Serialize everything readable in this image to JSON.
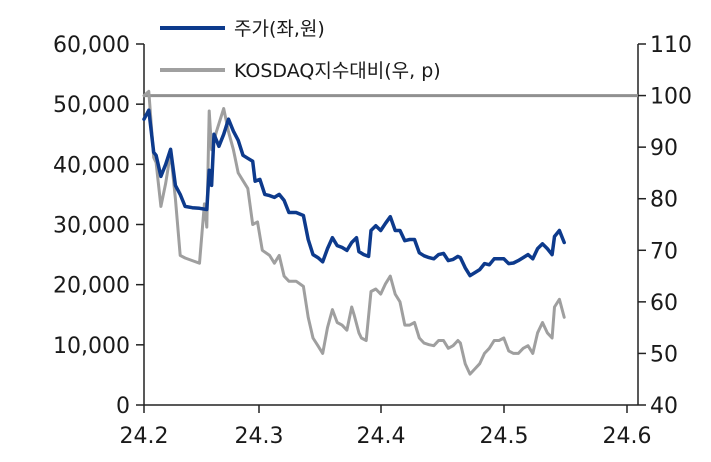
{
  "chart_data": {
    "type": "line",
    "title": "",
    "xlabel": "",
    "ylabel": "",
    "x_ticks": [
      "24.2",
      "24.3",
      "24.4",
      "24.5",
      "24.6"
    ],
    "y_left": {
      "min": 0,
      "max": 60000,
      "ticks": [
        "0",
        "10,000",
        "20,000",
        "30,000",
        "40,000",
        "50,000",
        "60,000"
      ]
    },
    "y_right": {
      "min": 40,
      "max": 110,
      "ticks": [
        "40",
        "50",
        "60",
        "70",
        "80",
        "90",
        "100",
        "110"
      ]
    },
    "reference_line": {
      "axis": "right",
      "value": 100,
      "color": "#909090"
    },
    "grid": false,
    "legend_position": "top-left",
    "series": [
      {
        "name": "주가(좌,원)",
        "axis": "left",
        "color": "#0d3a8c",
        "points": [
          [
            0.0,
            47500
          ],
          [
            0.04,
            49000
          ],
          [
            0.08,
            42000
          ],
          [
            0.1,
            41500
          ],
          [
            0.14,
            38000
          ],
          [
            0.18,
            40000
          ],
          [
            0.22,
            42500
          ],
          [
            0.26,
            36500
          ],
          [
            0.3,
            35000
          ],
          [
            0.34,
            33000
          ],
          [
            0.4,
            32800
          ],
          [
            0.46,
            32700
          ],
          [
            0.52,
            32500
          ],
          [
            0.54,
            39000
          ],
          [
            0.56,
            36500
          ],
          [
            0.58,
            45000
          ],
          [
            0.62,
            43000
          ],
          [
            0.66,
            45000
          ],
          [
            0.7,
            47500
          ],
          [
            0.74,
            45500
          ],
          [
            0.78,
            44000
          ],
          [
            0.82,
            41500
          ],
          [
            0.86,
            41000
          ],
          [
            0.9,
            40500
          ],
          [
            0.92,
            37200
          ],
          [
            0.96,
            37500
          ],
          [
            1.0,
            35000
          ],
          [
            1.04,
            34800
          ],
          [
            1.08,
            34500
          ],
          [
            1.12,
            35000
          ],
          [
            1.16,
            34000
          ],
          [
            1.2,
            32000
          ],
          [
            1.26,
            32000
          ],
          [
            1.32,
            31500
          ],
          [
            1.36,
            27500
          ],
          [
            1.4,
            25000
          ],
          [
            1.44,
            24500
          ],
          [
            1.48,
            23800
          ],
          [
            1.52,
            26000
          ],
          [
            1.56,
            27800
          ],
          [
            1.6,
            26500
          ],
          [
            1.64,
            26200
          ],
          [
            1.68,
            25700
          ],
          [
            1.72,
            27000
          ],
          [
            1.76,
            27800
          ],
          [
            1.78,
            25500
          ],
          [
            1.82,
            25000
          ],
          [
            1.86,
            24700
          ],
          [
            1.88,
            29000
          ],
          [
            1.92,
            29800
          ],
          [
            1.96,
            29000
          ],
          [
            2.0,
            30200
          ],
          [
            2.04,
            31300
          ],
          [
            2.08,
            29000
          ],
          [
            2.12,
            29000
          ],
          [
            2.16,
            27300
          ],
          [
            2.2,
            27500
          ],
          [
            2.24,
            27500
          ],
          [
            2.28,
            25300
          ],
          [
            2.32,
            24800
          ],
          [
            2.36,
            24500
          ],
          [
            2.4,
            24300
          ],
          [
            2.44,
            25000
          ],
          [
            2.48,
            25200
          ],
          [
            2.52,
            24000
          ],
          [
            2.56,
            24200
          ],
          [
            2.6,
            24700
          ],
          [
            2.62,
            24500
          ],
          [
            2.66,
            22800
          ],
          [
            2.7,
            21500
          ],
          [
            2.74,
            22000
          ],
          [
            2.78,
            22500
          ],
          [
            2.82,
            23500
          ],
          [
            2.86,
            23300
          ],
          [
            2.9,
            24300
          ],
          [
            2.94,
            24300
          ],
          [
            2.98,
            24300
          ],
          [
            3.02,
            23500
          ],
          [
            3.06,
            23600
          ],
          [
            3.1,
            24000
          ],
          [
            3.14,
            24500
          ],
          [
            3.18,
            25000
          ],
          [
            3.22,
            24300
          ],
          [
            3.26,
            26000
          ],
          [
            3.3,
            26800
          ],
          [
            3.34,
            26000
          ],
          [
            3.38,
            25000
          ],
          [
            3.4,
            28000
          ],
          [
            3.44,
            29000
          ],
          [
            3.48,
            27000
          ]
        ]
      },
      {
        "name": "KOSDAQ지수대비(우, p)",
        "axis": "right",
        "color": "#9f9f9f",
        "points": [
          [
            0.0,
            100
          ],
          [
            0.04,
            100.8
          ],
          [
            0.08,
            88
          ],
          [
            0.1,
            87
          ],
          [
            0.14,
            78.5
          ],
          [
            0.18,
            83
          ],
          [
            0.22,
            89
          ],
          [
            0.26,
            80
          ],
          [
            0.3,
            69
          ],
          [
            0.34,
            68.5
          ],
          [
            0.4,
            68
          ],
          [
            0.46,
            67.5
          ],
          [
            0.5,
            79
          ],
          [
            0.52,
            74.5
          ],
          [
            0.54,
            97
          ],
          [
            0.56,
            89.5
          ],
          [
            0.6,
            93
          ],
          [
            0.66,
            97.5
          ],
          [
            0.7,
            93
          ],
          [
            0.74,
            89.5
          ],
          [
            0.78,
            85
          ],
          [
            0.82,
            83.5
          ],
          [
            0.86,
            82
          ],
          [
            0.9,
            75
          ],
          [
            0.94,
            75.5
          ],
          [
            0.98,
            70
          ],
          [
            1.04,
            69
          ],
          [
            1.08,
            67.5
          ],
          [
            1.12,
            69
          ],
          [
            1.16,
            65
          ],
          [
            1.2,
            64
          ],
          [
            1.26,
            64
          ],
          [
            1.32,
            63
          ],
          [
            1.36,
            57
          ],
          [
            1.4,
            53
          ],
          [
            1.44,
            51.5
          ],
          [
            1.48,
            50
          ],
          [
            1.52,
            55
          ],
          [
            1.56,
            58.5
          ],
          [
            1.6,
            56
          ],
          [
            1.64,
            55.5
          ],
          [
            1.68,
            54.5
          ],
          [
            1.72,
            59
          ],
          [
            1.74,
            57.5
          ],
          [
            1.78,
            54
          ],
          [
            1.8,
            53
          ],
          [
            1.84,
            52.5
          ],
          [
            1.88,
            62
          ],
          [
            1.92,
            62.5
          ],
          [
            1.96,
            61.5
          ],
          [
            2.0,
            63.5
          ],
          [
            2.04,
            65
          ],
          [
            2.08,
            61.5
          ],
          [
            2.12,
            60
          ],
          [
            2.16,
            55.5
          ],
          [
            2.2,
            55.5
          ],
          [
            2.24,
            56
          ],
          [
            2.28,
            53
          ],
          [
            2.32,
            52
          ],
          [
            2.36,
            51.7
          ],
          [
            2.4,
            51.5
          ],
          [
            2.44,
            52.5
          ],
          [
            2.48,
            52.5
          ],
          [
            2.52,
            51
          ],
          [
            2.56,
            51.5
          ],
          [
            2.6,
            52.5
          ],
          [
            2.62,
            52
          ],
          [
            2.66,
            48
          ],
          [
            2.7,
            46
          ],
          [
            2.74,
            47
          ],
          [
            2.78,
            48
          ],
          [
            2.82,
            50
          ],
          [
            2.86,
            51
          ],
          [
            2.9,
            52.5
          ],
          [
            2.94,
            52.5
          ],
          [
            2.98,
            53
          ],
          [
            3.02,
            50.5
          ],
          [
            3.06,
            50
          ],
          [
            3.1,
            50
          ],
          [
            3.14,
            51
          ],
          [
            3.18,
            51.5
          ],
          [
            3.22,
            50
          ],
          [
            3.26,
            54
          ],
          [
            3.3,
            56
          ],
          [
            3.34,
            54
          ],
          [
            3.38,
            53
          ],
          [
            3.4,
            59
          ],
          [
            3.44,
            60.5
          ],
          [
            3.48,
            57
          ]
        ]
      }
    ]
  }
}
